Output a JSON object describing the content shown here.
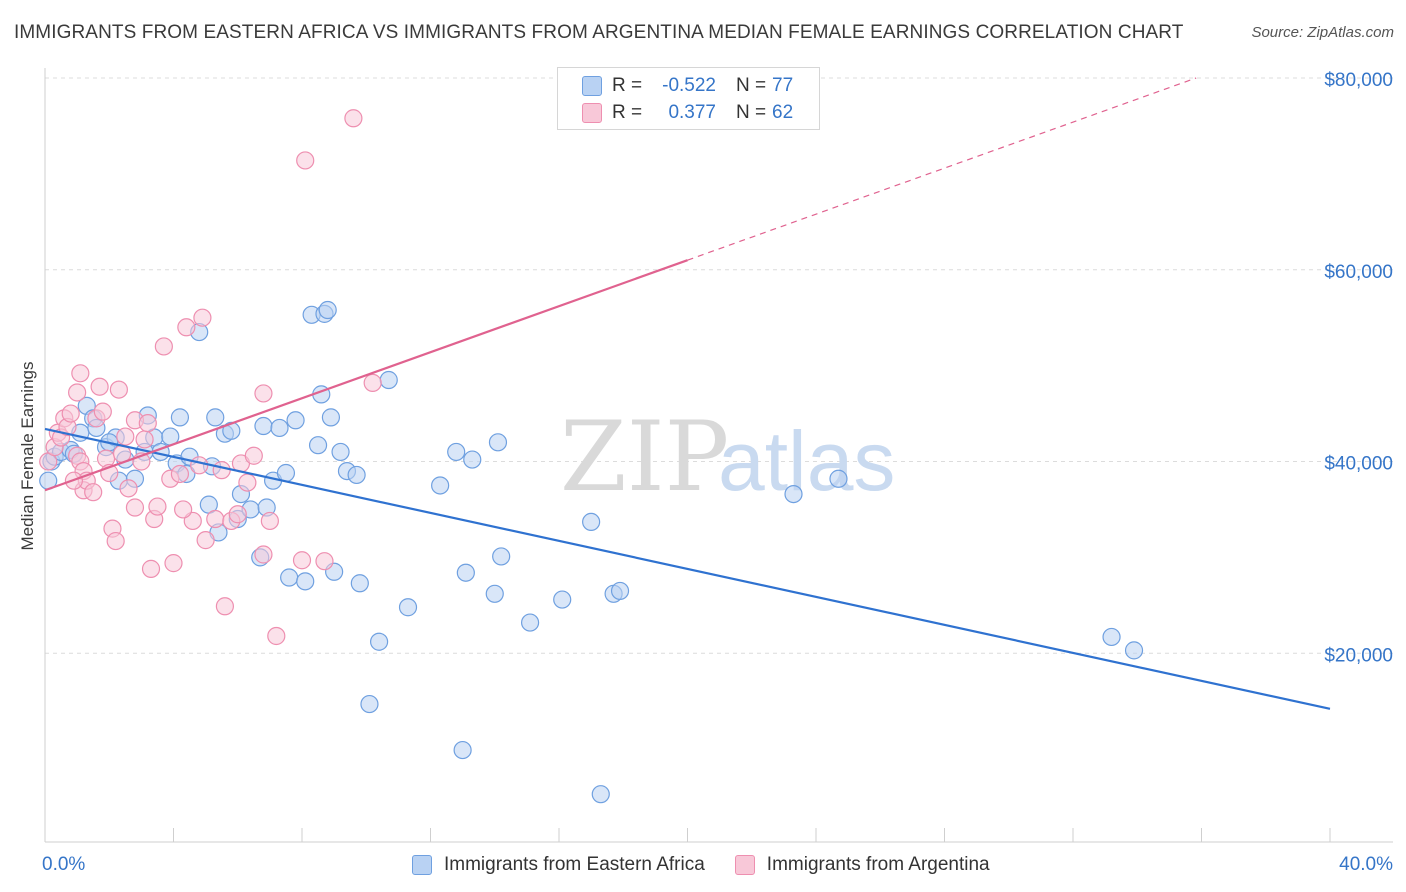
{
  "header": {
    "title": "IMMIGRANTS FROM EASTERN AFRICA VS IMMIGRANTS FROM ARGENTINA MEDIAN FEMALE EARNINGS CORRELATION CHART",
    "source": "Source: ZipAtlas.com"
  },
  "watermark": {
    "zip": "ZIP",
    "atlas": "atlas"
  },
  "legend": {
    "rows": [
      {
        "r_label": "R =",
        "r_value": "-0.522",
        "n_label": "N =",
        "n_value": "77"
      },
      {
        "r_label": "R =",
        "r_value": "0.377",
        "n_label": "N =",
        "n_value": "62"
      }
    ]
  },
  "colors": {
    "eastern_africa": "#6fa0e0",
    "eastern_africa_fill": "#b9d2f3",
    "eastern_africa_line": "#2f72d0",
    "argentina": "#ee8fb0",
    "argentina_fill": "#f8c8d8",
    "argentina_line": "#e0628f",
    "axis_value_text": "#3575c8"
  },
  "chart_data": {
    "type": "scatter",
    "title": "IMMIGRANTS FROM EASTERN AFRICA VS IMMIGRANTS FROM ARGENTINA MEDIAN FEMALE EARNINGS CORRELATION CHART",
    "xlabel": "",
    "ylabel": "Median Female Earnings",
    "xlim": [
      0,
      40
    ],
    "ylim": [
      0,
      82000
    ],
    "x_tick_labels": [
      "0.0%",
      "40.0%"
    ],
    "y_ticks": [
      20000,
      40000,
      60000,
      80000
    ],
    "y_tick_labels": [
      "$20,000",
      "$40,000",
      "$60,000",
      "$80,000"
    ],
    "grid": "horizontal dashed",
    "legend_position": "top-center",
    "series": [
      {
        "name": "Immigrants from Eastern Africa",
        "r": -0.522,
        "n": 77,
        "trend": {
          "x": [
            0,
            40
          ],
          "y": [
            43400,
            14200
          ],
          "dashed_from": null
        },
        "points": [
          [
            0.1,
            38000
          ],
          [
            0.2,
            40000
          ],
          [
            0.3,
            40500
          ],
          [
            0.5,
            41000
          ],
          [
            0.8,
            41200
          ],
          [
            0.9,
            40800
          ],
          [
            1.1,
            43000
          ],
          [
            1.3,
            45800
          ],
          [
            1.5,
            44500
          ],
          [
            1.6,
            43500
          ],
          [
            1.9,
            41500
          ],
          [
            2.2,
            42500
          ],
          [
            2.3,
            38000
          ],
          [
            2.5,
            40200
          ],
          [
            2.8,
            38200
          ],
          [
            3.1,
            41000
          ],
          [
            3.2,
            44800
          ],
          [
            3.4,
            42500
          ],
          [
            3.6,
            41000
          ],
          [
            3.9,
            42600
          ],
          [
            4.1,
            39800
          ],
          [
            4.2,
            44600
          ],
          [
            4.4,
            38700
          ],
          [
            4.5,
            40500
          ],
          [
            4.8,
            53500
          ],
          [
            5.1,
            35500
          ],
          [
            5.2,
            39500
          ],
          [
            5.3,
            44600
          ],
          [
            5.4,
            32600
          ],
          [
            5.6,
            42900
          ],
          [
            5.8,
            43200
          ],
          [
            6.0,
            34000
          ],
          [
            6.1,
            36600
          ],
          [
            6.4,
            35000
          ],
          [
            6.7,
            30000
          ],
          [
            6.8,
            43700
          ],
          [
            7.1,
            38000
          ],
          [
            7.3,
            43500
          ],
          [
            7.5,
            38800
          ],
          [
            7.6,
            27900
          ],
          [
            7.8,
            44300
          ],
          [
            8.1,
            27500
          ],
          [
            8.3,
            55300
          ],
          [
            8.5,
            41700
          ],
          [
            8.6,
            47000
          ],
          [
            8.7,
            55400
          ],
          [
            8.8,
            55800
          ],
          [
            8.9,
            44600
          ],
          [
            9.0,
            28500
          ],
          [
            9.2,
            41000
          ],
          [
            9.4,
            39000
          ],
          [
            9.7,
            38600
          ],
          [
            9.8,
            27300
          ],
          [
            10.1,
            14700
          ],
          [
            10.4,
            21200
          ],
          [
            10.7,
            48500
          ],
          [
            11.3,
            24800
          ],
          [
            12.8,
            41000
          ],
          [
            13.0,
            9900
          ],
          [
            13.1,
            28400
          ],
          [
            13.3,
            40200
          ],
          [
            14.0,
            26200
          ],
          [
            14.1,
            42000
          ],
          [
            14.2,
            30100
          ],
          [
            15.1,
            23200
          ],
          [
            16.1,
            25600
          ],
          [
            17.0,
            33700
          ],
          [
            17.3,
            5300
          ],
          [
            17.7,
            26200
          ],
          [
            17.9,
            26500
          ],
          [
            23.3,
            36600
          ],
          [
            24.7,
            38200
          ],
          [
            33.2,
            21700
          ],
          [
            33.9,
            20300
          ],
          [
            2.0,
            42000
          ],
          [
            6.9,
            35200
          ],
          [
            12.3,
            37500
          ]
        ]
      },
      {
        "name": "Immigrants from Argentina",
        "r": 0.377,
        "n": 62,
        "trend": {
          "x": [
            0,
            40
          ],
          "y": [
            37000,
            85000
          ],
          "dashed_from": 20
        },
        "points": [
          [
            0.1,
            40000
          ],
          [
            0.3,
            41500
          ],
          [
            0.4,
            43000
          ],
          [
            0.5,
            42500
          ],
          [
            0.6,
            44500
          ],
          [
            0.7,
            43600
          ],
          [
            0.8,
            45000
          ],
          [
            1.0,
            40600
          ],
          [
            1.0,
            47200
          ],
          [
            1.1,
            40000
          ],
          [
            1.1,
            49200
          ],
          [
            1.2,
            37000
          ],
          [
            1.2,
            39000
          ],
          [
            1.3,
            38000
          ],
          [
            1.5,
            36800
          ],
          [
            1.6,
            44500
          ],
          [
            1.7,
            47800
          ],
          [
            1.8,
            45200
          ],
          [
            1.9,
            40300
          ],
          [
            2.0,
            38800
          ],
          [
            2.1,
            33000
          ],
          [
            2.2,
            31700
          ],
          [
            2.3,
            47500
          ],
          [
            2.5,
            42600
          ],
          [
            2.6,
            37200
          ],
          [
            2.8,
            44300
          ],
          [
            2.8,
            35200
          ],
          [
            3.0,
            40000
          ],
          [
            3.1,
            42300
          ],
          [
            3.2,
            44000
          ],
          [
            3.3,
            28800
          ],
          [
            3.4,
            34000
          ],
          [
            3.5,
            35300
          ],
          [
            3.7,
            52000
          ],
          [
            3.9,
            38200
          ],
          [
            4.0,
            29400
          ],
          [
            4.2,
            38700
          ],
          [
            4.4,
            54000
          ],
          [
            4.6,
            33800
          ],
          [
            4.8,
            39600
          ],
          [
            4.9,
            55000
          ],
          [
            5.0,
            31800
          ],
          [
            5.3,
            34000
          ],
          [
            5.5,
            39100
          ],
          [
            5.6,
            24900
          ],
          [
            5.8,
            33800
          ],
          [
            6.1,
            39800
          ],
          [
            6.3,
            37800
          ],
          [
            6.5,
            40600
          ],
          [
            6.8,
            47100
          ],
          [
            6.8,
            30300
          ],
          [
            7.0,
            33800
          ],
          [
            7.2,
            21800
          ],
          [
            8.0,
            29700
          ],
          [
            8.1,
            71400
          ],
          [
            8.7,
            29600
          ],
          [
            9.6,
            75800
          ],
          [
            10.2,
            48200
          ],
          [
            2.4,
            40800
          ],
          [
            0.9,
            38000
          ],
          [
            4.3,
            35000
          ],
          [
            6.0,
            34500
          ]
        ]
      }
    ]
  },
  "bottom_legend": [
    "Immigrants from Eastern Africa",
    "Immigrants from Argentina"
  ]
}
